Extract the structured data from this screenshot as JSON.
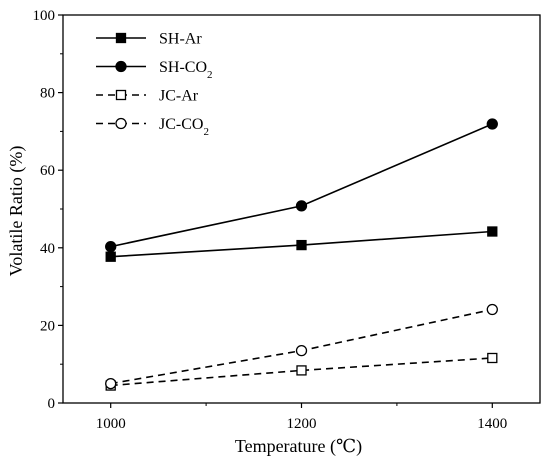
{
  "chart_data": {
    "type": "line",
    "xlabel": "Temperature (℃)",
    "ylabel": "Volatile Ratio (%)",
    "xlim": [
      950,
      1450
    ],
    "ylim": [
      0,
      100
    ],
    "x": [
      1000,
      1200,
      1400
    ],
    "xticks": [
      "1000",
      "1200",
      "1400"
    ],
    "yticks": [
      "0",
      "20",
      "40",
      "60",
      "80",
      "100"
    ],
    "grid": false,
    "legend_position": "top-left",
    "series": [
      {
        "name": "SH-Ar",
        "name_sub": "",
        "values": [
          37.7,
          40.7,
          44.2
        ],
        "line": "solid",
        "marker": "filled-square"
      },
      {
        "name": "SH-CO",
        "name_sub": "2",
        "values": [
          40.3,
          50.8,
          71.9
        ],
        "line": "solid",
        "marker": "filled-circle"
      },
      {
        "name": "JC-Ar",
        "name_sub": "",
        "values": [
          4.5,
          8.4,
          11.6
        ],
        "line": "dashed",
        "marker": "open-square"
      },
      {
        "name": "JC-CO",
        "name_sub": "2",
        "values": [
          5.0,
          13.5,
          24.1
        ],
        "line": "dashed",
        "marker": "open-circle"
      }
    ]
  }
}
